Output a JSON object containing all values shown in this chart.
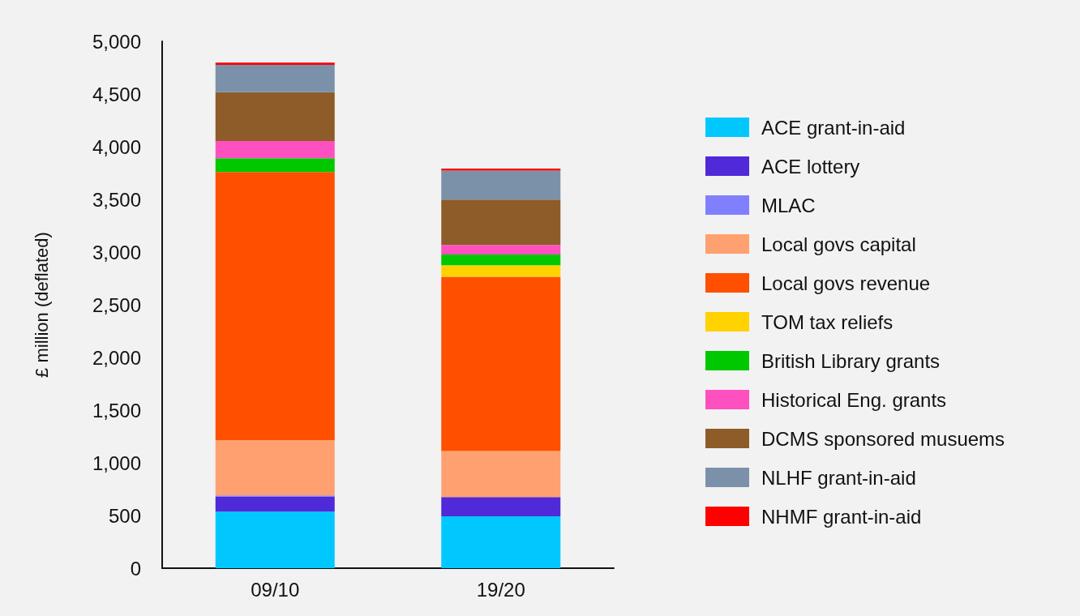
{
  "chart_data": {
    "type": "bar",
    "stacked": true,
    "ylabel": "£ million (deflated)",
    "categories": [
      "09/10",
      "19/20"
    ],
    "series": [
      {
        "name": "ACE grant-in-aid",
        "color": "#00c8ff",
        "values": [
          536,
          492
        ]
      },
      {
        "name": "ACE lottery",
        "color": "#5029d8",
        "values": [
          144,
          183
        ]
      },
      {
        "name": "MLAC",
        "color": "#8080ff",
        "values": [
          10,
          0
        ]
      },
      {
        "name": "Local govs capital",
        "color": "#ffa070",
        "values": [
          525,
          436
        ]
      },
      {
        "name": "Local govs revenue",
        "color": "#ff5000",
        "values": [
          2544,
          1654
        ]
      },
      {
        "name": "TOM tax reliefs",
        "color": "#ffd200",
        "values": [
          0,
          110
        ]
      },
      {
        "name": "British Library grants",
        "color": "#00c800",
        "values": [
          131,
          102
        ]
      },
      {
        "name": "Historical Eng. grants",
        "color": "#ff50c0",
        "values": [
          164,
          90
        ]
      },
      {
        "name": "DCMS sponsored musuems",
        "color": "#8e5c28",
        "values": [
          464,
          431
        ]
      },
      {
        "name": "NLHF grant-in-aid",
        "color": "#7b91aa",
        "values": [
          259,
          276
        ]
      },
      {
        "name": "NHMF grant-in-aid",
        "color": "#ff0000",
        "values": [
          21,
          18
        ]
      }
    ],
    "ylim": [
      0,
      5000
    ],
    "yticks": [
      0,
      500,
      {
        "value": 1000,
        "label": "1,000"
      },
      {
        "value": 1500,
        "label": "1,500"
      },
      {
        "value": 2000,
        "label": "2,000"
      },
      {
        "value": 2500,
        "label": "2,500"
      },
      {
        "value": 3000,
        "label": "3,000"
      },
      {
        "value": 3500,
        "label": "3,500"
      },
      {
        "value": 4000,
        "label": "4,000"
      },
      {
        "value": 4500,
        "label": "4,500"
      },
      {
        "value": 5000,
        "label": "5,000"
      }
    ],
    "grid": false,
    "legend": "right"
  }
}
